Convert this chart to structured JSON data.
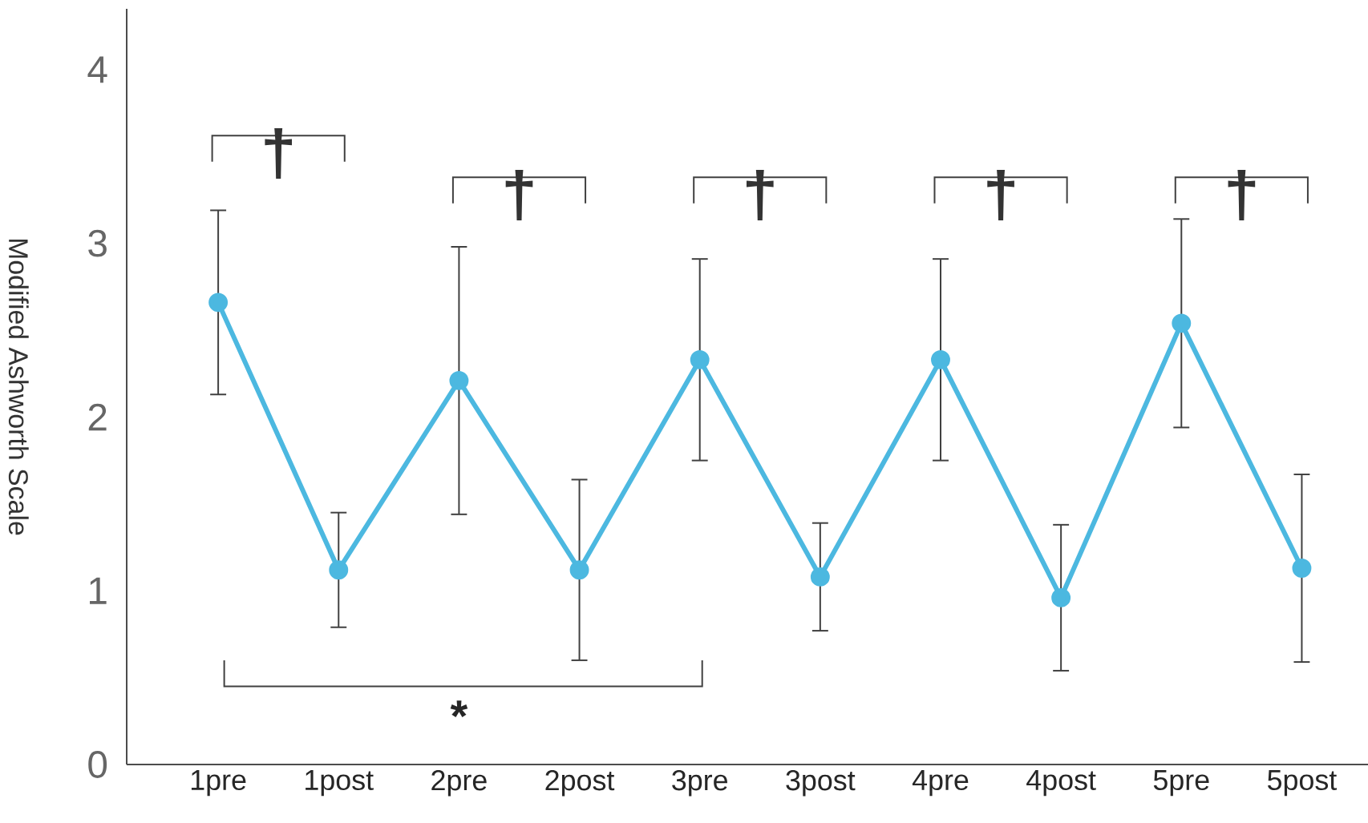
{
  "chart_data": {
    "type": "line",
    "ylabel": "Modified Ashworth Scale",
    "categories": [
      "1pre",
      "1post",
      "2pre",
      "2post",
      "3pre",
      "3post",
      "4pre",
      "4post",
      "5pre",
      "5post"
    ],
    "values": [
      2.66,
      1.12,
      2.21,
      1.12,
      2.33,
      1.08,
      2.33,
      0.96,
      2.54,
      1.13
    ],
    "errors": [
      0.53,
      0.33,
      0.77,
      0.52,
      0.58,
      0.31,
      0.58,
      0.42,
      0.6,
      0.54
    ],
    "color": "#4cb8e0",
    "marker": "circle",
    "line_style": "solid",
    "ylim": [
      0,
      4.35
    ],
    "yticks": [
      0,
      1,
      2,
      3,
      4
    ],
    "grid": false,
    "annotations": [
      "†",
      "†",
      "†",
      "†",
      "†",
      "*"
    ]
  }
}
